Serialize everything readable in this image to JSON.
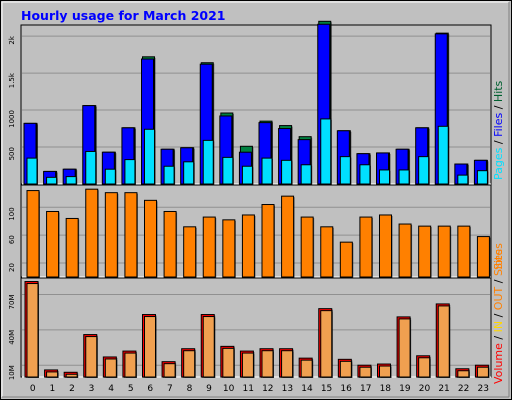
{
  "chart_data": {
    "type": "bar",
    "title": "Hourly usage for March 2021",
    "categories": [
      "0",
      "1",
      "2",
      "3",
      "4",
      "5",
      "6",
      "7",
      "8",
      "9",
      "10",
      "11",
      "12",
      "13",
      "14",
      "15",
      "16",
      "17",
      "18",
      "19",
      "20",
      "21",
      "22",
      "23"
    ],
    "panels": [
      {
        "id": "hits",
        "y_ticks": [
          500,
          1000,
          1500,
          2000
        ],
        "y_tick_labels": [
          "500",
          "1000",
          "1.5k",
          "2k"
        ],
        "ylim": [
          0,
          2150
        ],
        "legend_items": [
          {
            "text": "Pages",
            "color": "#00e0ff"
          },
          {
            "text": " / ",
            "color": "#000000"
          },
          {
            "text": "Files",
            "color": "#0000ff"
          },
          {
            "text": " / ",
            "color": "#000000"
          },
          {
            "text": "Hits",
            "color": "#006030"
          }
        ],
        "series": [
          {
            "name": "Hits",
            "color": "#008040",
            "values": [
              820,
              170,
              200,
              1060,
              430,
              760,
              1720,
              470,
              490,
              1640,
              960,
              510,
              850,
              790,
              640,
              2200,
              720,
              410,
              420,
              470,
              760,
              2040,
              270,
              320
            ]
          },
          {
            "name": "Files",
            "color": "#0000ff",
            "values": [
              820,
              170,
              200,
              1060,
              430,
              760,
              1690,
              470,
              490,
              1620,
              920,
              430,
              830,
              750,
              600,
              2160,
              720,
              410,
              420,
              470,
              760,
              2030,
              270,
              320
            ]
          },
          {
            "name": "Pages",
            "color": "#00e0ff",
            "values": [
              350,
              90,
              100,
              440,
              200,
              330,
              740,
              240,
              300,
              590,
              360,
              240,
              350,
              320,
              260,
              880,
              370,
              260,
              190,
              190,
              370,
              780,
              120,
              180
            ]
          }
        ]
      },
      {
        "id": "sites",
        "y_ticks": [
          20,
          60,
          100
        ],
        "y_tick_labels": [
          "20",
          "60",
          "100"
        ],
        "ylim": [
          0,
          132
        ],
        "legend_items": [
          {
            "text": "Sites",
            "color": "#ff8000"
          }
        ],
        "series": [
          {
            "name": "Sites",
            "color": "#ff8000",
            "values": [
              124,
              94,
              84,
              126,
              121,
              121,
              110,
              94,
              72,
              86,
              82,
              89,
              104,
              116,
              86,
              72,
              50,
              86,
              89,
              76,
              73,
              73,
              73,
              58
            ]
          }
        ]
      },
      {
        "id": "volume",
        "y_ticks": [
          10,
          40,
          70
        ],
        "y_tick_labels": [
          "10M",
          "40M",
          "70M"
        ],
        "ylim": [
          0,
          84
        ],
        "legend_items": [
          {
            "text": "Volume",
            "color": "#ff0000"
          },
          {
            "text": " / ",
            "color": "#000000"
          },
          {
            "text": "IN",
            "color": "#ffd700"
          },
          {
            "text": " / ",
            "color": "#000000"
          },
          {
            "text": "OUT",
            "color": "#ff8000"
          },
          {
            "text": " / ",
            "color": "#000000"
          },
          {
            "text": "Sites",
            "color": "#ff8000"
          }
        ],
        "series": [
          {
            "name": "Volume",
            "color": "#ff0000",
            "values": [
              81,
              6,
              4,
              36,
              17,
              22,
              53,
              13,
              24,
              53,
              26,
              22,
              24,
              24,
              16,
              58,
              15,
              10,
              11,
              51,
              18,
              62,
              7,
              10
            ]
          }
        ]
      }
    ]
  }
}
